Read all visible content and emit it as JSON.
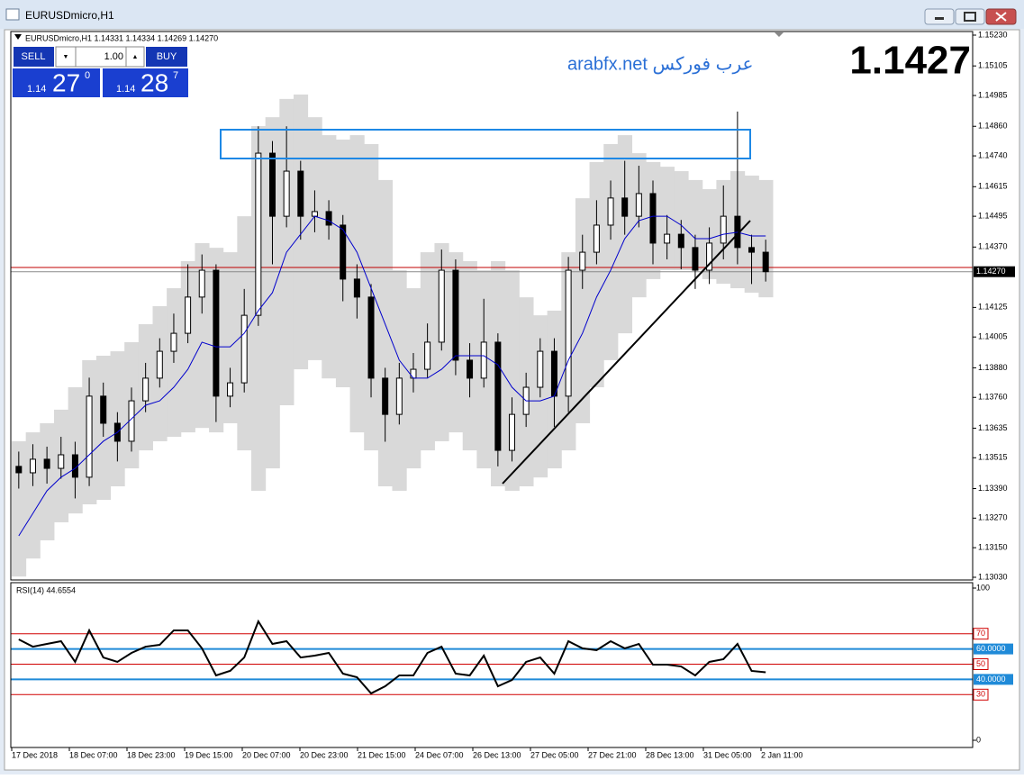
{
  "window": {
    "title": "EURUSDmicro,H1"
  },
  "trade_panel": {
    "sell": "SELL",
    "buy": "BUY",
    "down": "▼",
    "up": "▲",
    "volume": "1.00",
    "bid": {
      "big": "1.14",
      "pips": "27",
      "fraction": "0"
    },
    "ask": {
      "big": "1.14",
      "pips": "28",
      "fraction": "7"
    }
  },
  "watermark": {
    "site": "arabfx.net عرب فوركس",
    "price": "1.1427"
  },
  "time_axis": [
    "17 Dec 2018",
    "18 Dec 07:00",
    "18 Dec 23:00",
    "19 Dec 15:00",
    "20 Dec 07:00",
    "20 Dec 23:00",
    "21 Dec 15:00",
    "24 Dec 07:00",
    "26 Dec 13:00",
    "27 Dec 05:00",
    "27 Dec 21:00",
    "28 Dec 13:00",
    "31 Dec 05:00",
    "2 Jan 11:00"
  ],
  "chart_data": [
    {
      "type": "candlestick",
      "title": "EURUSDmicro,H1  1.14331 1.14334 1.14269 1.14270",
      "open": [
        1.1348,
        1.13454,
        1.13509,
        1.13472,
        1.13527,
        1.13436,
        1.13765,
        1.13655,
        1.13582,
        1.13746,
        1.13838,
        1.13947,
        1.1402,
        1.14167,
        1.14276,
        1.13765,
        1.13819,
        1.14093,
        1.14751,
        1.14495,
        1.14678,
        1.14495,
        1.14514,
        1.14459,
        1.1424,
        1.14167,
        1.13838,
        1.13691,
        1.13838,
        1.13874,
        1.13984,
        1.14276,
        1.13911,
        1.13838,
        1.13984,
        1.13545,
        1.13691,
        1.13801,
        1.13947,
        1.13765,
        1.14276,
        1.14349,
        1.14459,
        1.14569,
        1.14495,
        1.14587,
        1.14386,
        1.14422,
        1.14368,
        1.14276,
        1.14386,
        1.14495,
        1.14368,
        1.14349
      ],
      "high": [
        1.1354,
        1.1357,
        1.1356,
        1.136,
        1.1358,
        1.1384,
        1.1382,
        1.137,
        1.138,
        1.139,
        1.14,
        1.141,
        1.143,
        1.1434,
        1.143,
        1.1388,
        1.142,
        1.1486,
        1.148,
        1.1486,
        1.1472,
        1.146,
        1.1456,
        1.145,
        1.143,
        1.1422,
        1.1388,
        1.139,
        1.1394,
        1.1406,
        1.1436,
        1.1432,
        1.1398,
        1.1416,
        1.1402,
        1.1376,
        1.1386,
        1.14,
        1.14,
        1.1433,
        1.1442,
        1.1456,
        1.1464,
        1.1472,
        1.147,
        1.1464,
        1.145,
        1.1448,
        1.1442,
        1.1445,
        1.1462,
        1.1492,
        1.1442,
        1.144
      ],
      "low": [
        1.1339,
        1.134,
        1.1341,
        1.1343,
        1.1335,
        1.134,
        1.136,
        1.135,
        1.1354,
        1.137,
        1.138,
        1.139,
        1.1398,
        1.141,
        1.1366,
        1.1372,
        1.1378,
        1.1405,
        1.143,
        1.1445,
        1.144,
        1.1443,
        1.144,
        1.1415,
        1.1408,
        1.1376,
        1.1358,
        1.1365,
        1.1378,
        1.1384,
        1.1395,
        1.1385,
        1.1376,
        1.138,
        1.1348,
        1.135,
        1.1364,
        1.1376,
        1.1364,
        1.137,
        1.142,
        1.143,
        1.144,
        1.1442,
        1.1445,
        1.143,
        1.1432,
        1.1428,
        1.142,
        1.1422,
        1.1432,
        1.143,
        1.1422,
        1.1423
      ],
      "close": [
        1.13454,
        1.13509,
        1.13472,
        1.13527,
        1.13436,
        1.13765,
        1.13655,
        1.13582,
        1.13746,
        1.13838,
        1.13947,
        1.1402,
        1.14167,
        1.14276,
        1.13765,
        1.13819,
        1.14093,
        1.14751,
        1.14495,
        1.14678,
        1.14495,
        1.14514,
        1.14459,
        1.1424,
        1.14167,
        1.13838,
        1.13691,
        1.13838,
        1.13874,
        1.13984,
        1.14276,
        1.13911,
        1.13838,
        1.13984,
        1.13545,
        1.13691,
        1.13801,
        1.13947,
        1.13765,
        1.14276,
        1.14349,
        1.14459,
        1.14569,
        1.14495,
        1.14587,
        1.14386,
        1.14422,
        1.14368,
        1.14276,
        1.14386,
        1.14495,
        1.14368,
        1.14349,
        1.1427
      ],
      "ma": {
        "color": "#0000cc",
        "values": [
          1.13198,
          1.13289,
          1.13381,
          1.13436,
          1.13472,
          1.13527,
          1.13582,
          1.13618,
          1.13673,
          1.13728,
          1.13746,
          1.13801,
          1.13874,
          1.13984,
          1.13965,
          1.13965,
          1.1402,
          1.14112,
          1.14185,
          1.14349,
          1.14422,
          1.14495,
          1.14477,
          1.14441,
          1.14349,
          1.14203,
          1.14057,
          1.13911,
          1.13838,
          1.13838,
          1.13874,
          1.13929,
          1.13929,
          1.13929,
          1.13892,
          1.13801,
          1.13746,
          1.13746,
          1.13765,
          1.13911,
          1.1402,
          1.14167,
          1.14276,
          1.14404,
          1.14477,
          1.14495,
          1.14495,
          1.14459,
          1.14404,
          1.14404,
          1.14422,
          1.1443,
          1.14415,
          1.14415
        ]
      },
      "bands": {
        "color": "#d9d9d9",
        "upper": [
          1.13582,
          1.13618,
          1.13655,
          1.1371,
          1.13801,
          1.13911,
          1.13929,
          1.13947,
          1.13984,
          1.14057,
          1.1413,
          1.14203,
          1.14313,
          1.14386,
          1.14367,
          1.14349,
          1.14495,
          1.14861,
          1.14897,
          1.14971,
          1.14989,
          1.14897,
          1.14824,
          1.14806,
          1.14824,
          1.14788,
          1.14642,
          1.14276,
          1.14203,
          1.14349,
          1.14386,
          1.14349,
          1.14313,
          1.14276,
          1.14313,
          1.14276,
          1.14166,
          1.14093,
          1.14112,
          1.14349,
          1.14568,
          1.14715,
          1.14788,
          1.14824,
          1.14751,
          1.14715,
          1.14696,
          1.14678,
          1.14642,
          1.14605,
          1.14642,
          1.14678,
          1.1466,
          1.14642
        ],
        "lower": [
          1.13033,
          1.13106,
          1.1318,
          1.13253,
          1.13289,
          1.13326,
          1.13344,
          1.13399,
          1.13472,
          1.13545,
          1.13582,
          1.136,
          1.13618,
          1.13636,
          1.13618,
          1.13655,
          1.13545,
          1.13381,
          1.13472,
          1.13728,
          1.13874,
          1.13911,
          1.13837,
          1.13801,
          1.13618,
          1.13545,
          1.13399,
          1.13381,
          1.13472,
          1.13545,
          1.13582,
          1.13618,
          1.13545,
          1.13472,
          1.13399,
          1.13381,
          1.13399,
          1.13435,
          1.13472,
          1.13545,
          1.13655,
          1.13801,
          1.13911,
          1.1402,
          1.14166,
          1.1424,
          1.14276,
          1.14276,
          1.14276,
          1.1424,
          1.14221,
          1.14203,
          1.14185,
          1.14166
        ]
      },
      "ylim": [
        1.1303,
        1.1523
      ],
      "yticks": [
        {
          "value": 1.1523,
          "label": "1.15230"
        },
        1.15105,
        1.14985,
        {
          "value": 1.1486,
          "label": "1.14860"
        },
        {
          "value": 1.1474,
          "label": "1.14740"
        },
        1.14615,
        1.14495,
        {
          "value": 1.1437,
          "label": "1.14370"
        },
        1.14125,
        1.14005,
        {
          "value": 1.1388,
          "label": "1.13880"
        },
        {
          "value": 1.1376,
          "label": "1.13760"
        },
        1.13635,
        1.13515,
        {
          "value": 1.1339,
          "label": "1.13390"
        },
        {
          "value": 1.1327,
          "label": "1.13270"
        },
        {
          "value": 1.1315,
          "label": "1.13150"
        },
        {
          "value": 1.1303,
          "label": "1.13030"
        }
      ],
      "bid": {
        "value": 1.1427,
        "label": "1.14270"
      },
      "ask": 1.14287,
      "bid_color": "#8a8a8a",
      "ask_color": "#c00000"
    },
    {
      "type": "line",
      "title": "RSI(14) 44.6554",
      "color": "#000000",
      "values": [
        66.3,
        61.5,
        63.3,
        65.1,
        51.5,
        72.2,
        54.4,
        51.5,
        57.4,
        61.5,
        62.7,
        72.2,
        72.2,
        60.4,
        42.6,
        45.6,
        54.4,
        78.1,
        63.3,
        65.1,
        54.4,
        55.6,
        57.4,
        43.8,
        41.4,
        30.8,
        35.5,
        42.6,
        42.6,
        57.4,
        61.5,
        43.8,
        42.6,
        55.6,
        35.5,
        39.6,
        51.5,
        54.4,
        43.8,
        65.1,
        60.4,
        59.2,
        65.1,
        60.4,
        63.3,
        49.7,
        49.7,
        48.5,
        42.6,
        51.5,
        53.3,
        63.3,
        45.6,
        44.6554
      ],
      "ylim": [
        0,
        100
      ],
      "yticks": [
        0,
        30,
        50,
        70,
        100
      ],
      "grid_color": "#d00000",
      "levels": [
        {
          "value": 60,
          "label": "60.0000"
        },
        {
          "value": 40,
          "label": "40.0000"
        }
      ],
      "level_color": "#1f8ad8"
    }
  ]
}
